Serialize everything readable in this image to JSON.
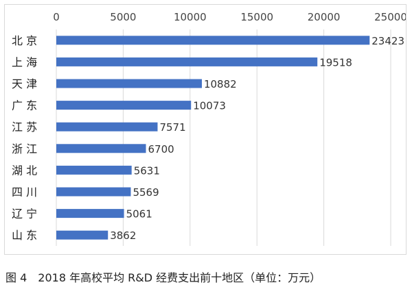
{
  "chart_data": {
    "type": "bar",
    "orientation": "horizontal",
    "categories": [
      "北 京",
      "上 海",
      "天 津",
      "广 东",
      "江 苏",
      "浙 江",
      "湖 北",
      "四 川",
      "辽 宁",
      "山 东"
    ],
    "values": [
      23423,
      19518,
      10882,
      10073,
      7571,
      6700,
      5631,
      5569,
      5061,
      3862
    ],
    "xlim": [
      0,
      25000
    ],
    "xticks": [
      0,
      5000,
      10000,
      15000,
      20000,
      25000
    ],
    "axis_position": "top",
    "grid": true,
    "data_labels": true,
    "bar_color": "#4472c4"
  },
  "caption": {
    "figure_label": "图 4",
    "text": "2018 年高校平均 R&D 经费支出前十地区（单位：万元）"
  }
}
